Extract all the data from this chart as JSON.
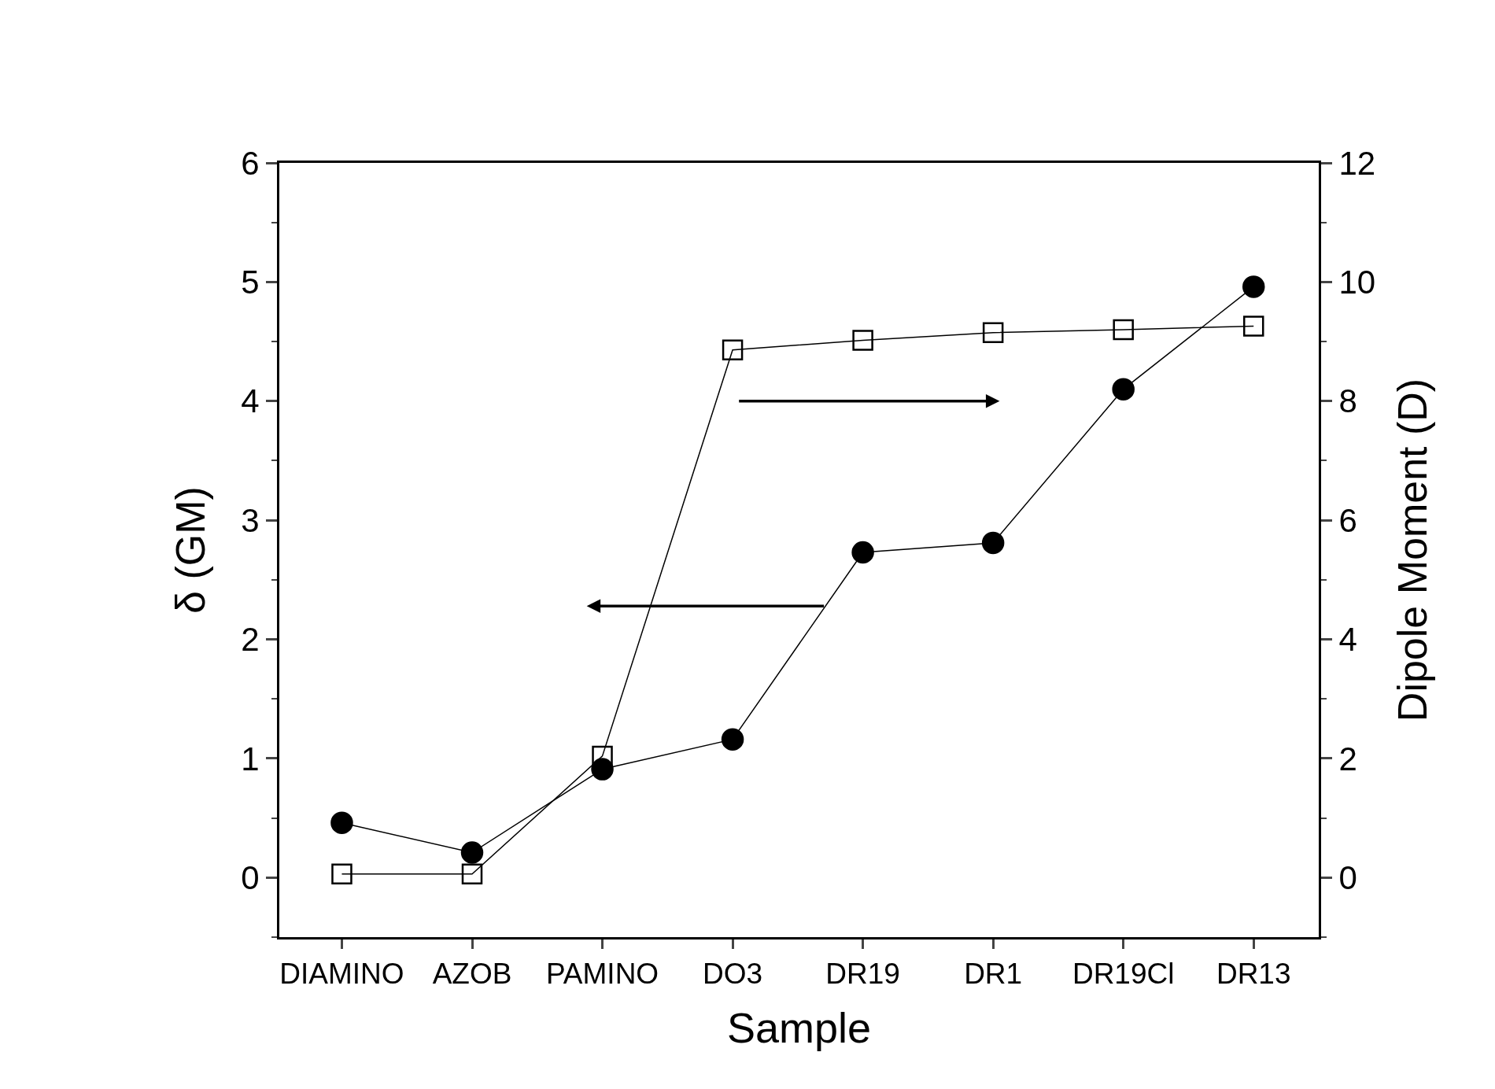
{
  "chart_data": {
    "type": "line",
    "xlabel": "Sample",
    "ylabel": "δ (GM)",
    "y2label": "Dipole Moment (D)",
    "categories": [
      "DIAMINO",
      "AZOB",
      "PAMINO",
      "DO3",
      "DR19",
      "DR1",
      "DR19Cl",
      "DR13"
    ],
    "series": [
      {
        "color": "#000000",
        "marker": "circle",
        "values": [
          0.46,
          0.21,
          0.91,
          1.16,
          2.73,
          2.81,
          4.1,
          4.96
        ]
      },
      {
        "color": "#000000",
        "marker": "square",
        "axis": "y2",
        "values": [
          0.06,
          0.06,
          2.04,
          8.86,
          9.02,
          9.15,
          9.2,
          9.26
        ]
      }
    ],
    "ylim": [
      -0.5,
      6
    ],
    "yticks": [
      0,
      1,
      2,
      3,
      4,
      5,
      6
    ],
    "y2lim": [
      -1,
      12
    ],
    "y2ticks": [
      0,
      2,
      4,
      6,
      8,
      10,
      12
    ],
    "line_style": "solid"
  }
}
